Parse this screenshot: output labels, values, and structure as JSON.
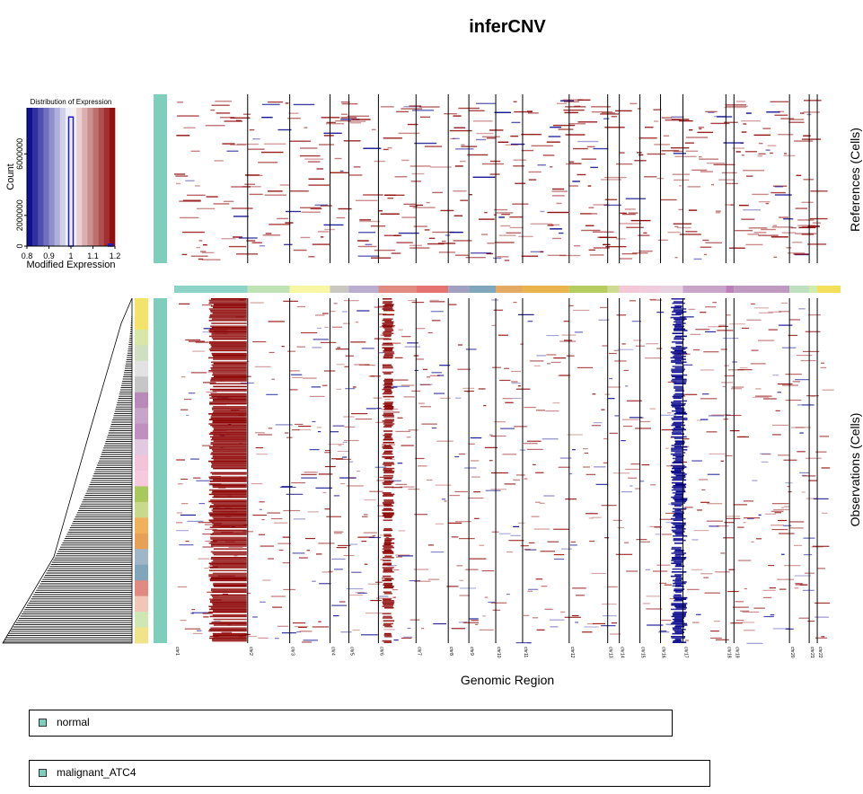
{
  "chart_data": {
    "type": "heatmap",
    "title": "inferCNV",
    "xlabel": "Genomic Region",
    "references_label": "References (Cells)",
    "observations_label": "Observations (Cells)",
    "chromosomes": [
      "chr1",
      "chr2",
      "chr3",
      "chr4",
      "chr5",
      "chr6",
      "chr7",
      "chr8",
      "chr9",
      "chr10",
      "chr11",
      "chr12",
      "chr13",
      "chr14",
      "chr15",
      "chr16",
      "chr17",
      "chr18",
      "chr19",
      "chr20",
      "chr21",
      "chr22"
    ],
    "chromosome_colors": [
      "#8dd3c7",
      "#bfe3b4",
      "#f6f6a3",
      "#c9c7c2",
      "#b9aed0",
      "#e08a80",
      "#e57471",
      "#a1a0c0",
      "#7fa6ba",
      "#e4aa63",
      "#e9b34d",
      "#b6cc5e",
      "#cfdb92",
      "#f3c7d5",
      "#efcbdc",
      "#e6d2de",
      "#c9a4c9",
      "#bb80b8",
      "#bf9ac0",
      "#bfe0bf",
      "#d0eaac",
      "#f4df5a"
    ],
    "color_scale": {
      "low": "#00008b",
      "mid": "#ffffff",
      "high": "#8b0000",
      "range": [
        0.8,
        1.2
      ]
    },
    "legend_histogram": {
      "title": "Distribution of Expression",
      "xlabel": "Modified Expression",
      "ylabel": "Count",
      "x_ticks": [
        "0.8",
        "0.9",
        "1",
        "1.1",
        "1.2"
      ],
      "y_ticks": [
        "0",
        "2000000",
        "6000000"
      ],
      "bins": [
        {
          "x": 1.0,
          "count": 8400000
        },
        {
          "x": 1.18,
          "count": 120000
        }
      ]
    },
    "observation_patterns": [
      {
        "chromosome": "chr1",
        "state": "gain",
        "intensity": 0.85
      },
      {
        "chromosome": "chr6",
        "state": "gain",
        "intensity": 0.65
      },
      {
        "chromosome": "chr16",
        "state": "loss",
        "intensity": 0.85
      }
    ],
    "groups": [
      "normal",
      "malignant_ATC4"
    ],
    "group_color": "#7fcdbb"
  }
}
